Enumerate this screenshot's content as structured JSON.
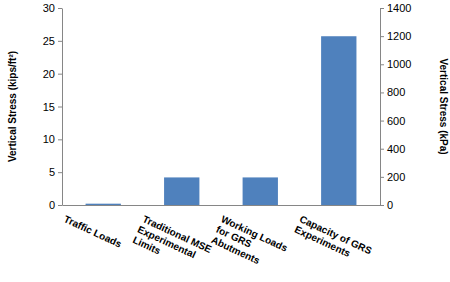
{
  "chart_data": {
    "type": "bar",
    "categories": [
      "Traffic Loads",
      "Traditional MSE Experimental Limits",
      "Working Loads for GRS Abutments",
      "Capacity of GRS Experiments"
    ],
    "values": [
      0.2,
      4.2,
      4.2,
      25.7
    ],
    "color": "#4f81bd",
    "y_label": "Vertical Stress (kips/ft²)",
    "ylim": [
      0,
      30
    ],
    "yticks": [
      0,
      5,
      10,
      15,
      20,
      25,
      30
    ],
    "y2_label": "Vertical Stress (kPa)",
    "y2lim": [
      0,
      1400
    ],
    "y2ticks": [
      0,
      200,
      400,
      600,
      800,
      1000,
      1200,
      1400
    ],
    "grid": false
  }
}
